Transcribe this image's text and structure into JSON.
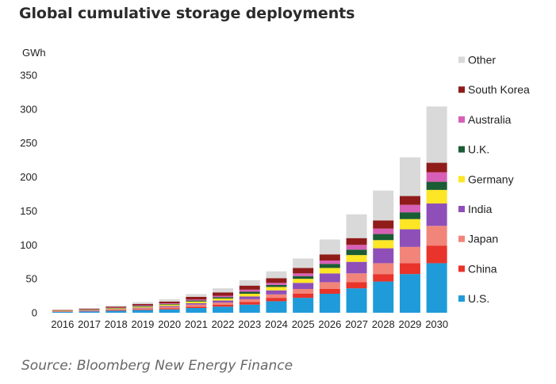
{
  "title": "Global cumulative storage deployments",
  "source": "Source: Bloomberg New Energy Finance",
  "chart_data": {
    "type": "bar",
    "stacked": true,
    "ylabel": "GWh",
    "ylim": [
      0,
      350
    ],
    "yticks": [
      0,
      50,
      100,
      150,
      200,
      250,
      300,
      350
    ],
    "grid": false,
    "legend_position": "right",
    "categories": [
      "2016",
      "2017",
      "2018",
      "2019",
      "2020",
      "2021",
      "2022",
      "2023",
      "2024",
      "2025",
      "2026",
      "2027",
      "2028",
      "2029",
      "2030"
    ],
    "series": [
      {
        "name": "U.S.",
        "color": "#1f9bd9",
        "values": [
          1.5,
          2,
          3,
          4,
          5,
          7,
          9,
          12,
          17,
          22,
          28,
          36,
          46,
          57,
          73
        ]
      },
      {
        "name": "China",
        "color": "#e8342b",
        "values": [
          0.5,
          0.5,
          1,
          1,
          1.5,
          2,
          3,
          4,
          5,
          6,
          7,
          9,
          11,
          16,
          26
        ]
      },
      {
        "name": "Japan",
        "color": "#f2857a",
        "values": [
          0.5,
          0.5,
          1,
          1.5,
          2,
          3,
          3,
          4,
          5,
          7,
          10,
          13,
          16,
          24,
          29
        ]
      },
      {
        "name": "India",
        "color": "#8e50b8",
        "values": [
          0,
          0.5,
          0.5,
          1,
          1.5,
          2,
          3,
          4,
          6,
          9,
          13,
          17,
          22,
          26,
          33
        ]
      },
      {
        "name": "Germany",
        "color": "#fce625",
        "values": [
          0.5,
          0.5,
          1,
          1.5,
          2,
          2.5,
          3,
          4,
          5,
          6,
          8,
          10,
          12,
          15,
          20
        ]
      },
      {
        "name": "U.K.",
        "color": "#1a5c34",
        "values": [
          0,
          0.5,
          0.5,
          1,
          1,
          1.5,
          2,
          3,
          3,
          4,
          6,
          8,
          9,
          10,
          12
        ]
      },
      {
        "name": "Australia",
        "color": "#d85fb6",
        "values": [
          0,
          0.5,
          0.5,
          1,
          1,
          1.5,
          2,
          3,
          3,
          4,
          5,
          7,
          8,
          11,
          14
        ]
      },
      {
        "name": "South Korea",
        "color": "#8f1c1a",
        "values": [
          1,
          1,
          1.5,
          2,
          2.5,
          4,
          5,
          6,
          7,
          8,
          9,
          10,
          12,
          13,
          14
        ]
      },
      {
        "name": "Other",
        "color": "#d9d9d9",
        "values": [
          0.5,
          1,
          1.5,
          2.5,
          3.5,
          4,
          6,
          8,
          10,
          14,
          22,
          35,
          44,
          57,
          83
        ]
      }
    ]
  }
}
